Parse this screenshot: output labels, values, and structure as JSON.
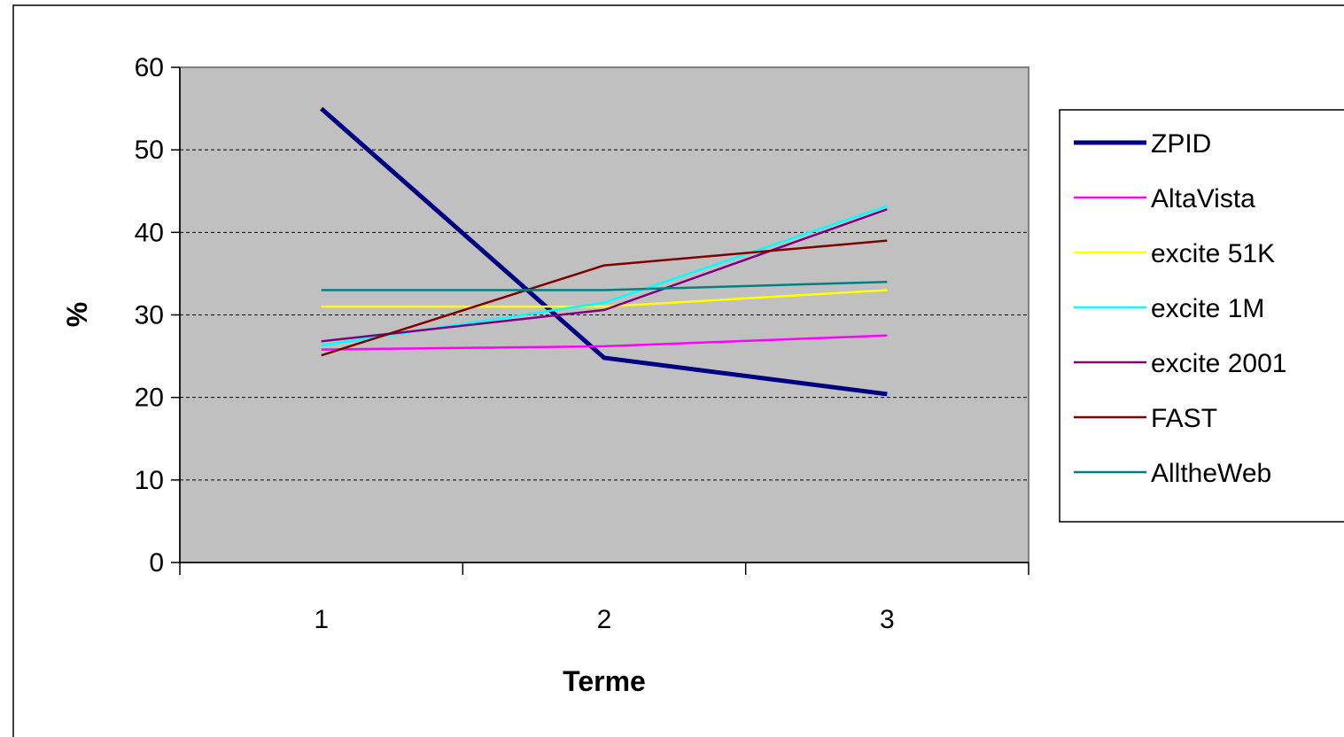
{
  "chart_data": {
    "type": "line",
    "title": "",
    "xlabel": "Terme",
    "ylabel": "%",
    "categories": [
      "1",
      "2",
      "3"
    ],
    "ylim": [
      0,
      60
    ],
    "yticks": [
      "0",
      "10",
      "20",
      "30",
      "40",
      "50",
      "60"
    ],
    "grid": "horizontal-dashed",
    "legend_position": "right",
    "plot_background": "#c0c0c0",
    "series": [
      {
        "name": "ZPID",
        "values": [
          55,
          24.8,
          20.4
        ],
        "color": "#000080",
        "bold": true
      },
      {
        "name": "AltaVista",
        "values": [
          25.8,
          26.2,
          27.5
        ],
        "color": "#ff00ff"
      },
      {
        "name": "excite 51K",
        "values": [
          31,
          31,
          33
        ],
        "color": "#ffff00"
      },
      {
        "name": "excite 1M",
        "values": [
          26.3,
          31.5,
          43.2
        ],
        "color": "#00ffff"
      },
      {
        "name": "excite 2001",
        "values": [
          26.8,
          30.6,
          42.8
        ],
        "color": "#800080"
      },
      {
        "name": "FAST",
        "values": [
          25.1,
          36,
          39
        ],
        "color": "#800000"
      },
      {
        "name": "AlltheWeb",
        "values": [
          33,
          33,
          34
        ],
        "color": "#008080"
      }
    ]
  }
}
